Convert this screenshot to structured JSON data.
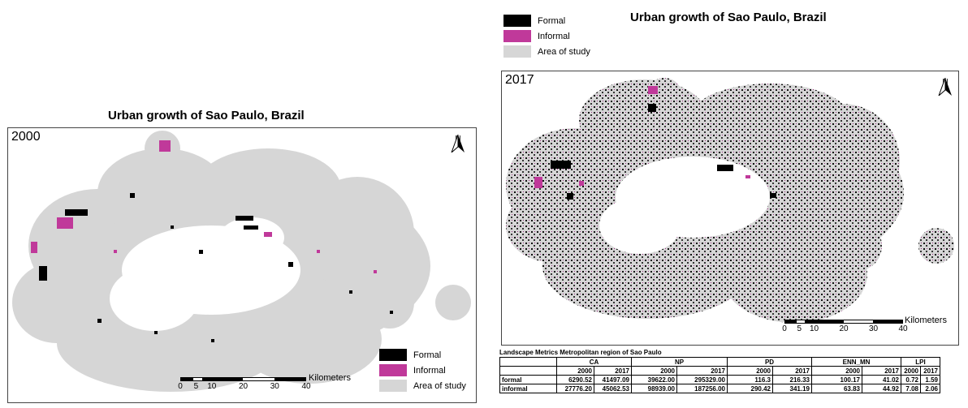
{
  "maps": [
    {
      "title": "Urban growth of Sao Paulo, Brazil",
      "year": "2000",
      "north_label": "N",
      "scale_unit": "Kilometers",
      "scale_ticks": [
        "0",
        "5",
        "10",
        "20",
        "30",
        "40"
      ]
    },
    {
      "title": "Urban growth of Sao Paulo, Brazil",
      "year": "2017",
      "north_label": "N",
      "scale_unit": "Kilometers",
      "scale_ticks": [
        "0",
        "5",
        "10",
        "20",
        "30",
        "40"
      ]
    }
  ],
  "legend": {
    "formal": "Formal",
    "informal": "Informal",
    "area": "Area of study"
  },
  "colors": {
    "formal": "#000000",
    "informal": "#c0399a",
    "area": "#d6d6d6"
  },
  "table": {
    "caption": "Landscape Metrics Metropolitan region of Sao Paulo",
    "metrics": [
      "CA",
      "NP",
      "PD",
      "ENN_MN",
      "LPI"
    ],
    "years": [
      "2000",
      "2017"
    ],
    "rows": [
      {
        "name": "formal",
        "values": [
          "6290.52",
          "41497.09",
          "39622.00",
          "295329.00",
          "116.3",
          "216.33",
          "100.17",
          "41.02",
          "0.72",
          "1.59"
        ]
      },
      {
        "name": "informal",
        "values": [
          "27776.20",
          "45062.53",
          "98939.00",
          "187256.00",
          "290.42",
          "341.19",
          "63.83",
          "44.92",
          "7.08",
          "2.06"
        ]
      }
    ]
  }
}
